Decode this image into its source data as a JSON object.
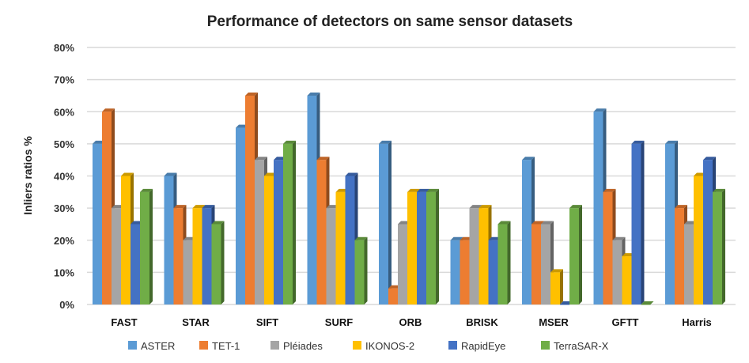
{
  "chart_data": {
    "type": "bar",
    "title": "Performance of detectors on same sensor datasets",
    "xlabel": "",
    "ylabel": "Inliers ratios %",
    "ylim": [
      0,
      80
    ],
    "yticks": [
      "0%",
      "10%",
      "20%",
      "30%",
      "40%",
      "50%",
      "60%",
      "70%",
      "80%"
    ],
    "grid": true,
    "legend": "bottom",
    "categories": [
      "FAST",
      "STAR",
      "SIFT",
      "SURF",
      "ORB",
      "BRISK",
      "MSER",
      "GFTT",
      "Harris"
    ],
    "series": [
      {
        "name": "ASTER",
        "color": "#5b9bd5",
        "values": [
          50,
          40,
          55,
          65,
          50,
          20,
          45,
          60,
          50
        ]
      },
      {
        "name": "TET-1",
        "color": "#ed7d31",
        "values": [
          60,
          30,
          65,
          45,
          5,
          20,
          25,
          35,
          30
        ]
      },
      {
        "name": "Pléiades",
        "color": "#a5a5a5",
        "values": [
          30,
          20,
          45,
          30,
          25,
          30,
          25,
          20,
          25
        ]
      },
      {
        "name": "IKONOS-2",
        "color": "#ffc000",
        "values": [
          40,
          30,
          40,
          35,
          35,
          30,
          10,
          15,
          40
        ]
      },
      {
        "name": "RapidEye",
        "color": "#4472c4",
        "values": [
          25,
          30,
          45,
          40,
          35,
          20,
          0,
          50,
          45
        ]
      },
      {
        "name": "TerraSAR-X",
        "color": "#70ad47",
        "values": [
          35,
          25,
          50,
          20,
          35,
          25,
          30,
          0,
          35
        ]
      }
    ]
  }
}
